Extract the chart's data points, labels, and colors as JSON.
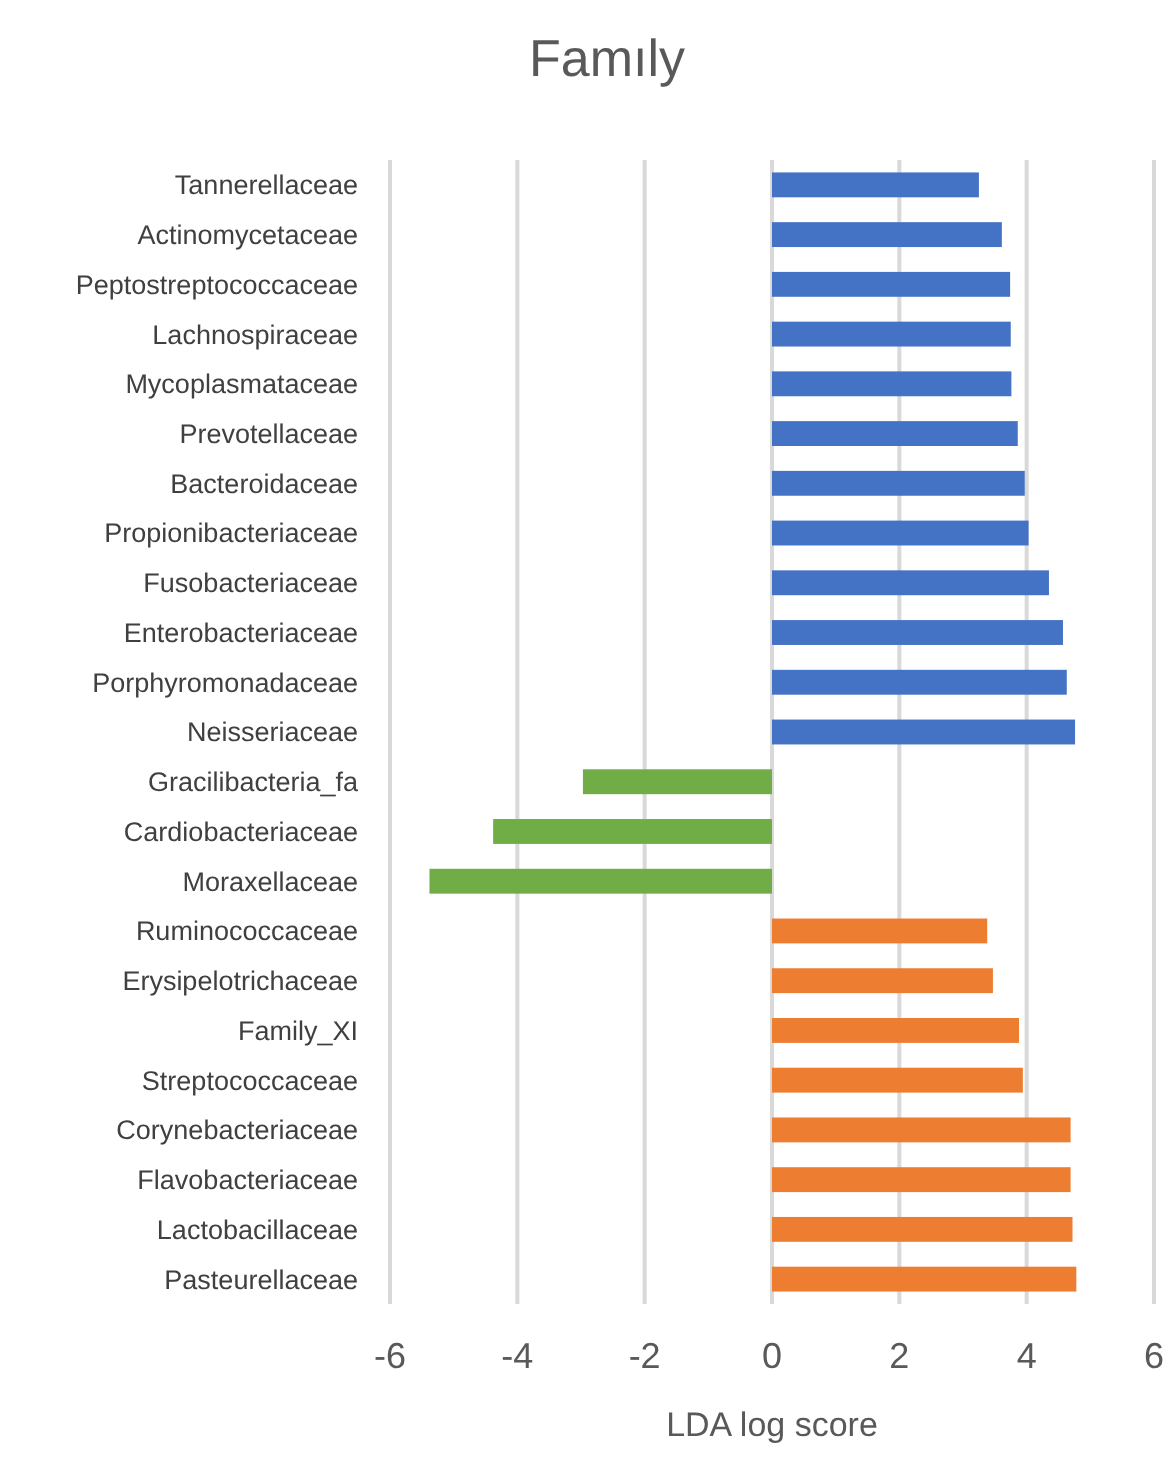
{
  "chart_data": {
    "type": "bar",
    "orientation": "horizontal",
    "title": "Famıly",
    "xlabel": "LDA log score",
    "categories": [
      "Tannerellaceae",
      "Actinomycetaceae",
      "Peptostreptococcaceae",
      "Lachnospiraceae",
      "Mycoplasmataceae",
      "Prevotellaceae",
      "Bacteroidaceae",
      "Propionibacteriaceae",
      "Fusobacteriaceae",
      "Enterobacteriaceae",
      "Porphyromonadaceae",
      "Neisseriaceae",
      "Gracilibacteria_fa",
      "Cardiobacteriaceae",
      "Moraxellaceae",
      "Ruminococcaceae",
      "Erysipelotrichaceae",
      "Family_XI",
      "Streptococcaceae",
      "Corynebacteriaceae",
      "Flavobacteriaceae",
      "Lactobacillaceae",
      "Pasteurellaceae"
    ],
    "values": [
      3.25,
      3.61,
      3.74,
      3.75,
      3.76,
      3.86,
      3.97,
      4.03,
      4.35,
      4.57,
      4.63,
      4.76,
      -2.97,
      -4.38,
      -5.38,
      3.38,
      3.47,
      3.88,
      3.94,
      4.69,
      4.69,
      4.72,
      4.78
    ],
    "colors": [
      "#4472c4",
      "#4472c4",
      "#4472c4",
      "#4472c4",
      "#4472c4",
      "#4472c4",
      "#4472c4",
      "#4472c4",
      "#4472c4",
      "#4472c4",
      "#4472c4",
      "#4472c4",
      "#70ad47",
      "#70ad47",
      "#70ad47",
      "#ed7d31",
      "#ed7d31",
      "#ed7d31",
      "#ed7d31",
      "#ed7d31",
      "#ed7d31",
      "#ed7d31",
      "#ed7d31"
    ],
    "xlim": [
      -6,
      6
    ],
    "xticks": [
      -6,
      -4,
      -2,
      0,
      2,
      4,
      6
    ],
    "grid": "x"
  }
}
